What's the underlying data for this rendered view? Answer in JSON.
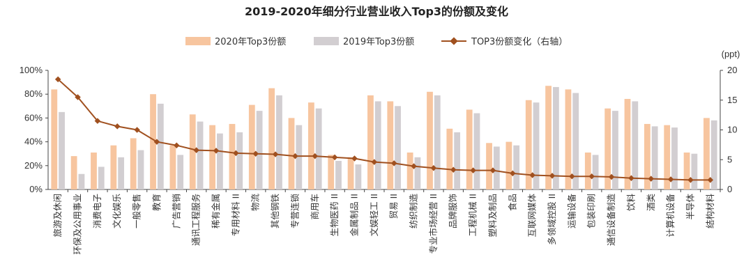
{
  "chart_data": {
    "type": "bar",
    "title": "2019-2020年细分行业营业收入Top3的份额及变化",
    "categories": [
      "旅游及休闲",
      "环保及公用事业",
      "消费电子",
      "文化娱乐",
      "一般零售",
      "教育",
      "广告营销",
      "通讯工程服务",
      "稀有金属",
      "专用材料 II",
      "物流",
      "其他钢铁",
      "专营连锁",
      "商用车",
      "生物医药 II",
      "金属制品 II",
      "文娱轻工 II",
      "贸易 II",
      "纺织制造",
      "专业市场经营 II",
      "品牌服饰",
      "工程机械 II",
      "塑料及制品",
      "食品",
      "互联网媒体",
      "多领域控股 II",
      "运输设备",
      "包装印刷",
      "通信设备制造",
      "饮料",
      "酒类",
      "计算机设备",
      "半导体",
      "结构材料"
    ],
    "series": [
      {
        "name": "2020年Top3份额",
        "axis": "left",
        "color": "#f7c59f",
        "values": [
          84,
          28,
          31,
          37,
          43,
          80,
          37,
          63,
          54,
          55,
          71,
          85,
          60,
          73,
          29,
          27,
          79,
          74,
          31,
          82,
          51,
          67,
          39,
          40,
          75,
          87,
          84,
          31,
          68,
          76,
          55,
          54,
          31,
          60
        ]
      },
      {
        "name": "2019年Top3份额",
        "axis": "left",
        "color": "#d2ced1",
        "values": [
          65,
          13,
          19,
          27,
          33,
          72,
          29,
          57,
          47,
          48,
          66,
          79,
          54,
          68,
          24,
          21,
          74,
          70,
          27,
          79,
          48,
          64,
          36,
          37,
          73,
          86,
          81,
          29,
          66,
          74,
          53,
          52,
          30,
          58
        ]
      },
      {
        "name": "TOP3份额变化（右轴）",
        "axis": "right",
        "type": "line",
        "color": "#a0501f",
        "values": [
          18.5,
          15.5,
          11.5,
          10.6,
          10.0,
          8.0,
          7.4,
          6.6,
          6.5,
          6.1,
          6.0,
          5.9,
          5.6,
          5.6,
          5.4,
          5.2,
          4.6,
          4.4,
          3.9,
          3.6,
          3.3,
          3.2,
          3.2,
          2.7,
          2.4,
          2.3,
          2.2,
          2.2,
          2.1,
          1.9,
          1.8,
          1.7,
          1.6,
          1.6
        ]
      }
    ],
    "ylim": [
      0,
      100
    ],
    "y_ticks": [
      "0%",
      "20%",
      "40%",
      "60%",
      "80%",
      "100%"
    ],
    "y2lim": [
      0,
      20
    ],
    "y2_ticks": [
      "0",
      "5",
      "10",
      "15",
      "20"
    ],
    "y2_unit": "(ppt)",
    "legend_position": "top",
    "grid": false
  }
}
